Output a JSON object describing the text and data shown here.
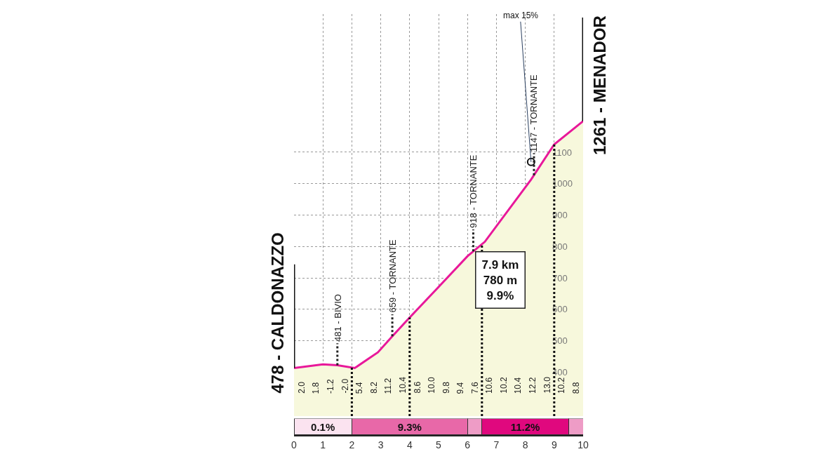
{
  "chart_data": [
    {
      "type": "area",
      "x": [
        0,
        1,
        1.5,
        2.1,
        2.9,
        3.4,
        4,
        5,
        6,
        6.6,
        8.2,
        9,
        10
      ],
      "series": [
        {
          "color": "#e8189a",
          "values": [
            413,
            425,
            422,
            413,
            463,
            514,
            574,
            671,
            769,
            815,
            1013,
            1125,
            1199
          ]
        }
      ],
      "xlim": [
        0,
        10
      ],
      "xticks": [
        0,
        1,
        2,
        3,
        4,
        5,
        6,
        7,
        8,
        9,
        10
      ],
      "ylim": [
        260,
        1540
      ],
      "yticks": [
        400,
        500,
        600,
        700,
        800,
        900,
        1000,
        1100
      ],
      "grid": true,
      "line_style": "solid",
      "tick_labels": "y",
      "ref_lines": [
        {
          "axis": "x",
          "value": 1.5,
          "label": "481 - BIVIO",
          "line_style": "dotted",
          "color": "#222222"
        },
        {
          "axis": "x",
          "value": 3.4,
          "label": "659 - TORNANTE",
          "line_style": "dotted",
          "color": "#222222"
        },
        {
          "axis": "x",
          "value": 6.2,
          "label": "918 - TORNANTE",
          "line_style": "dotted",
          "color": "#222222"
        },
        {
          "axis": "x",
          "value": 8.3,
          "label": "1147 - TORNANTE",
          "line_style": "dotted",
          "color": "#222222"
        },
        {
          "axis": "x",
          "value": 2,
          "label": null,
          "line_style": "dotted",
          "color": "#111111"
        },
        {
          "axis": "x",
          "value": 4,
          "label": null,
          "line_style": "dotted",
          "color": "#111111"
        },
        {
          "axis": "x",
          "value": 6.5,
          "label": null,
          "line_style": "dotted",
          "color": "#111111"
        },
        {
          "axis": "x",
          "value": 9,
          "label": null,
          "line_style": "dotted",
          "color": "#111111"
        }
      ],
      "annotations": [
        {
          "text": "478 - CALDONAZZO",
          "x": 0,
          "y": 413
        },
        {
          "text": "1261 - MENADOR",
          "x": 10,
          "y": 1199
        },
        {
          "text": "max 15%",
          "x": 8.2,
          "y": 1069
        },
        "2.0",
        "1.8",
        "-1.2",
        "-2.0",
        "5.4",
        "8.2",
        "11.2",
        "10.4",
        "8.6",
        "10.0",
        "9.8",
        "9.4",
        "7.6",
        "10.6",
        "10.2",
        "10.4",
        "12.2",
        "13.0",
        "10.2",
        "8.8",
        "7.9 km\n780 m\n9.9%"
      ]
    },
    {
      "type": "bar",
      "orientation": "horizontal",
      "stacked": true,
      "categories": [
        null
      ],
      "xlim": [
        0,
        10
      ],
      "xticks": [
        0,
        1,
        2,
        3,
        4,
        5,
        6,
        7,
        8,
        9,
        10
      ],
      "tick_labels": "x",
      "series": [
        {
          "name": "0.1%",
          "color": "#fbe3f0",
          "values": [
            2
          ]
        },
        {
          "name": "9.3%",
          "color": "#e868a8",
          "values": [
            4
          ]
        },
        {
          "color": "#ee9cc6",
          "values": [
            0.5
          ]
        },
        {
          "name": "11.2%",
          "color": "#e0087e",
          "values": [
            3
          ]
        },
        {
          "color": "#ee9cc6",
          "values": [
            0.5
          ]
        }
      ]
    }
  ]
}
